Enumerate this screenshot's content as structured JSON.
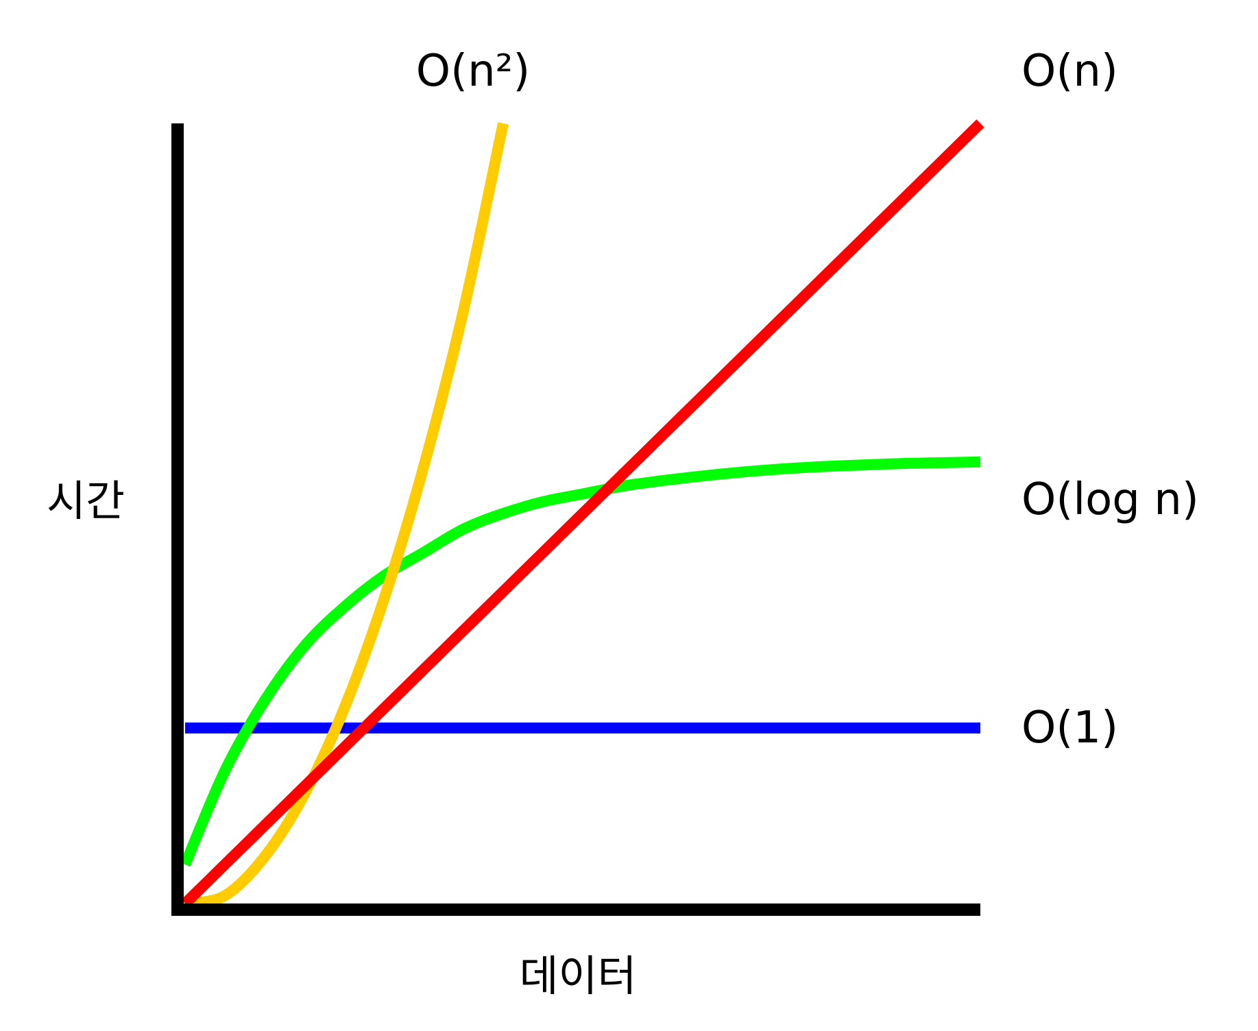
{
  "chart_data": {
    "type": "line",
    "title": "",
    "xlabel": "데이터",
    "ylabel": "시간",
    "x": [
      0,
      5,
      10,
      15,
      20,
      25,
      30,
      35,
      40,
      45,
      50,
      55,
      60,
      65,
      70,
      75,
      80,
      85,
      90,
      95,
      100
    ],
    "xlim": [
      0,
      100
    ],
    "ylim": [
      0,
      100
    ],
    "grid": false,
    "legend": "none",
    "series": [
      {
        "name": "O(n²)",
        "color": "#ffcc00",
        "values": [
          0,
          1,
          6,
          14,
          25,
          39,
          56,
          76,
          100,
          null,
          null,
          null,
          null,
          null,
          null,
          null,
          null,
          null,
          null,
          null,
          null
        ]
      },
      {
        "name": "O(n)",
        "color": "#ff0000",
        "values": [
          0,
          5,
          10,
          15,
          20,
          25,
          30,
          35,
          40,
          45,
          50,
          55,
          60,
          65,
          70,
          75,
          80,
          85,
          90,
          95,
          100
        ]
      },
      {
        "name": "O(log n)",
        "color": "#00ff00",
        "values": [
          5,
          17,
          26,
          33,
          38,
          42,
          45,
          48,
          50,
          51.5,
          52.5,
          53.5,
          54.2,
          54.8,
          55.3,
          55.7,
          56,
          56.2,
          56.4,
          56.5,
          56.6
        ]
      },
      {
        "name": "O(1)",
        "color": "#0000ff",
        "values": [
          22.5,
          22.5,
          22.5,
          22.5,
          22.5,
          22.5,
          22.5,
          22.5,
          22.5,
          22.5,
          22.5,
          22.5,
          22.5,
          22.5,
          22.5,
          22.5,
          22.5,
          22.5,
          22.5,
          22.5,
          22.5
        ]
      }
    ]
  }
}
